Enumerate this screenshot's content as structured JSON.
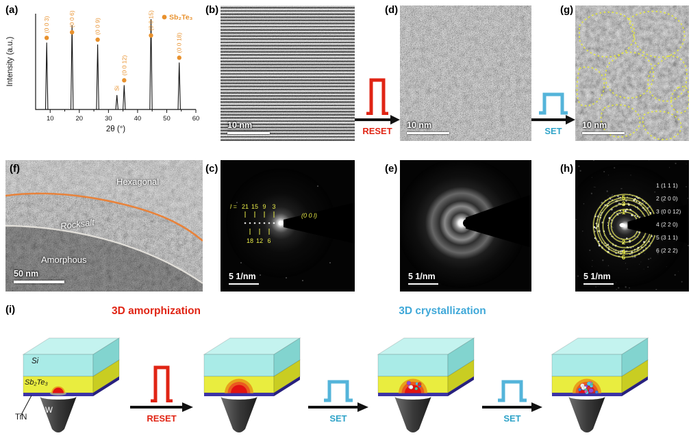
{
  "colors": {
    "accent_orange": "#E8912D",
    "reset_red": "#E02414",
    "set_blue": "#54B4DA",
    "annotation_yellow": "#E8EA48",
    "si_layer": "#A9EBE7",
    "sb2te3_layer": "#E9ED3F",
    "tin_layer": "#3C33A6",
    "dome_red": "#E21212",
    "dome_orange": "#E8A11C"
  },
  "panels": {
    "a": {
      "label": "(a)"
    },
    "b": {
      "label": "(b)",
      "scale_bar": "10 nm"
    },
    "c": {
      "label": "(c)",
      "scale_bar": "5 1/nm",
      "prefix": "l =",
      "indices_top": [
        "21",
        "15",
        "9",
        "3"
      ],
      "indices_bottom": [
        "18",
        "12",
        "6"
      ],
      "plane": "(0 0 l)"
    },
    "d": {
      "label": "(d)",
      "scale_bar": "10 nm"
    },
    "e": {
      "label": "(e)",
      "scale_bar": "5 1/nm"
    },
    "f": {
      "label": "(f)",
      "scale_bar": "50 nm",
      "region_top": "Hexagonal",
      "region_mid": "Rocksalt",
      "region_bottom": "Amorphous"
    },
    "g": {
      "label": "(g)",
      "scale_bar": "10 nm"
    },
    "h": {
      "label": "(h)",
      "scale_bar": "5 1/nm",
      "ring_numbers": [
        "1",
        "2",
        "3",
        "4",
        "5",
        "6"
      ],
      "ring_labels": [
        "1 (1 1 1)",
        "2 (2 0 0)",
        "3 (0 0 12)",
        "4 (2 2 0)",
        "5 (3 1 1)",
        "6 (2 2 2)"
      ]
    },
    "i": {
      "label": "(i)",
      "title_left": "3D amorphization",
      "title_right": "3D crystallization",
      "layers": {
        "si": "Si",
        "sb2te3": "Sb₂Te₃",
        "tin": "TiN",
        "electrode": "W"
      }
    }
  },
  "transitions": {
    "reset": "RESET",
    "set": "SET"
  },
  "chart_data": {
    "type": "line",
    "title": "",
    "xlabel": "2θ (°)",
    "ylabel": "Intensity (a.u.)",
    "xlim": [
      5,
      60
    ],
    "xticks": [
      10,
      20,
      30,
      40,
      50,
      60
    ],
    "grid": false,
    "legend": [
      {
        "label": "Sb₂Te₃",
        "marker_color": "#E8912D"
      }
    ],
    "series": [
      {
        "name": "Sb2Te3 film XRD pattern",
        "peaks": [
          {
            "two_theta": 8.8,
            "rel_intensity": 0.74,
            "label": "(0 0 3)",
            "marker": true
          },
          {
            "two_theta": 17.5,
            "rel_intensity": 0.93,
            "label": "(0 0 6)",
            "marker": true
          },
          {
            "two_theta": 26.3,
            "rel_intensity": 0.72,
            "label": "(0 0 9)",
            "marker": true
          },
          {
            "two_theta": 32.9,
            "rel_intensity": 0.16,
            "label": "Si",
            "marker": false
          },
          {
            "two_theta": 35.4,
            "rel_intensity": 0.27,
            "label": "(0 0 12)",
            "marker": true
          },
          {
            "two_theta": 44.6,
            "rel_intensity": 1.0,
            "label": "(0 0 15)",
            "marker": true
          },
          {
            "two_theta": 54.3,
            "rel_intensity": 0.52,
            "label": "(0 0 18)",
            "marker": true
          }
        ]
      }
    ]
  }
}
